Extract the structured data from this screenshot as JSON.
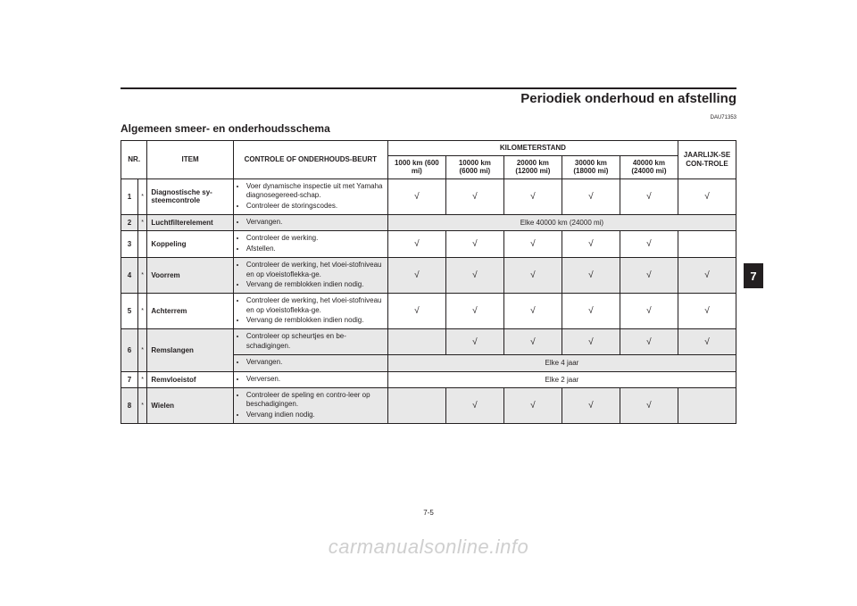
{
  "chapter_title": "Periodiek onderhoud en afstelling",
  "doc_code": "DAU71353",
  "section_title": "Algemeen smeer- en onderhoudsschema",
  "side_tab": "7",
  "page_number": "7-5",
  "watermark": "carmanualsonline.info",
  "tick": "√",
  "header": {
    "nr": "NR.",
    "item": "ITEM",
    "check": "CONTROLE OF ONDERHOUDS-BEURT",
    "km_group": "KILOMETERSTAND",
    "yearly": "JAARLIJK-SE CON-TROLE",
    "km_cols": [
      "1000 km (600 mi)",
      "10000 km (6000 mi)",
      "20000 km (12000 mi)",
      "30000 km (18000 mi)",
      "40000 km (24000 mi)"
    ]
  },
  "rows": {
    "r1": {
      "nr": "1",
      "ast": "*",
      "item": "Diagnostische sy-steemcontrole",
      "check_a": "Voer dynamische inspectie uit met Yamaha diagnosegereed-schap.",
      "check_b": "Controleer de storingscodes.",
      "marks": [
        "t",
        "t",
        "t",
        "t",
        "t",
        "t"
      ]
    },
    "r2": {
      "nr": "2",
      "ast": "*",
      "item": "Luchtfilterelement",
      "check_a": "Vervangen.",
      "span_text": "Elke 40000 km (24000 mi)"
    },
    "r3": {
      "nr": "3",
      "ast": "",
      "item": "Koppeling",
      "check_a": "Controleer de werking.",
      "check_b": "Afstellen.",
      "marks": [
        "t",
        "t",
        "t",
        "t",
        "t",
        ""
      ]
    },
    "r4": {
      "nr": "4",
      "ast": "*",
      "item": "Voorrem",
      "check_a": "Controleer de werking, het vloei-stofniveau en op vloeistoflekka-ge.",
      "check_b": "Vervang de remblokken indien nodig.",
      "marks": [
        "t",
        "t",
        "t",
        "t",
        "t",
        "t"
      ]
    },
    "r5": {
      "nr": "5",
      "ast": "*",
      "item": "Achterrem",
      "check_a": "Controleer de werking, het vloei-stofniveau en op vloeistoflekka-ge.",
      "check_b": "Vervang de remblokken indien nodig.",
      "marks": [
        "t",
        "t",
        "t",
        "t",
        "t",
        "t"
      ]
    },
    "r6a": {
      "nr": "6",
      "ast": "*",
      "item": "Remslangen",
      "check_a": "Controleer op scheurtjes en be-schadigingen.",
      "marks": [
        "",
        "t",
        "t",
        "t",
        "t",
        "t"
      ]
    },
    "r6b": {
      "check_a": "Vervangen.",
      "span_text": "Elke 4 jaar"
    },
    "r7": {
      "nr": "7",
      "ast": "*",
      "item": "Remvloeistof",
      "check_a": "Verversen.",
      "span_text": "Elke 2 jaar"
    },
    "r8": {
      "nr": "8",
      "ast": "*",
      "item": "Wielen",
      "check_a": "Controleer de speling en contro-leer op beschadigingen.",
      "check_b": "Vervang indien nodig.",
      "marks": [
        "",
        "t",
        "t",
        "t",
        "t",
        ""
      ]
    }
  }
}
